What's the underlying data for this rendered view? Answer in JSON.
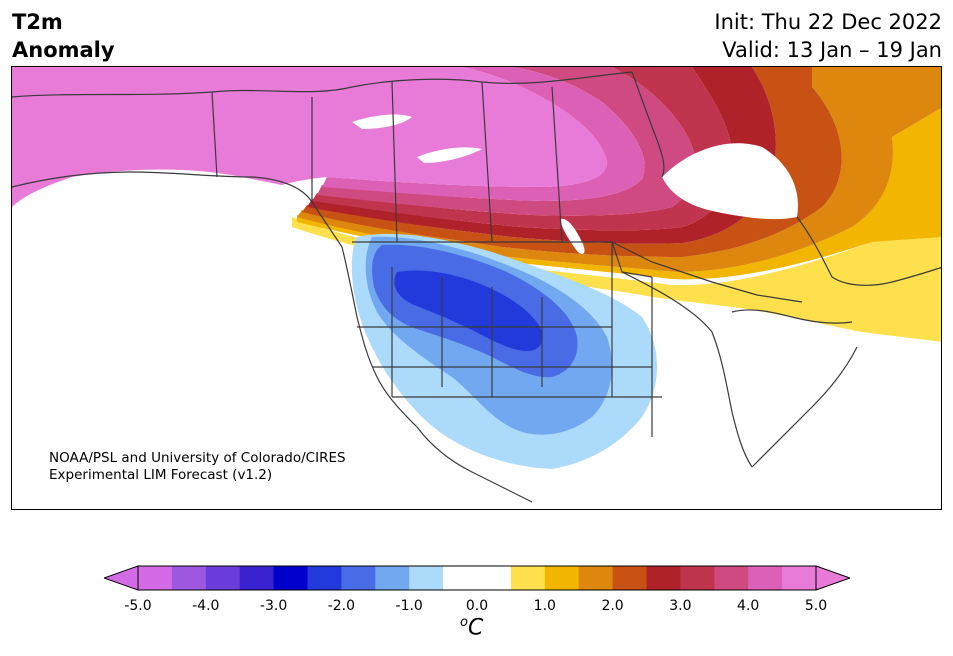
{
  "header": {
    "variable_line1": "T2m",
    "variable_line2": "Anomaly",
    "init_line": "Init: Thu 22 Dec 2022",
    "valid_line": "Valid: 13 Jan – 19 Jan"
  },
  "credit": {
    "line1": "NOAA/PSL and University of Colorado/CIRES",
    "line2": "Experimental LIM Forecast (v1.2)"
  },
  "colorbar": {
    "unit_base": "C",
    "unit_sup": "o",
    "min": -5.0,
    "max": 5.0,
    "ticks": [
      "-5.0",
      "-4.0",
      "-3.0",
      "-2.0",
      "-1.0",
      "0.0",
      "1.0",
      "2.0",
      "3.0",
      "4.0",
      "5.0"
    ],
    "colors": [
      "#d46be6",
      "#9e57e0",
      "#6a3ddb",
      "#3a21d0",
      "#0000cc",
      "#2239dc",
      "#4a6be6",
      "#72a8f0",
      "#acdafa",
      "#ffffff",
      "#ffffff",
      "#fde04b",
      "#f3b600",
      "#dd870f",
      "#c75214",
      "#b0222a",
      "#c0344e",
      "#cf4a80",
      "#dd60b7",
      "#e87ad8"
    ],
    "under_color": "#d46be6",
    "over_color": "#e87ad8"
  }
}
